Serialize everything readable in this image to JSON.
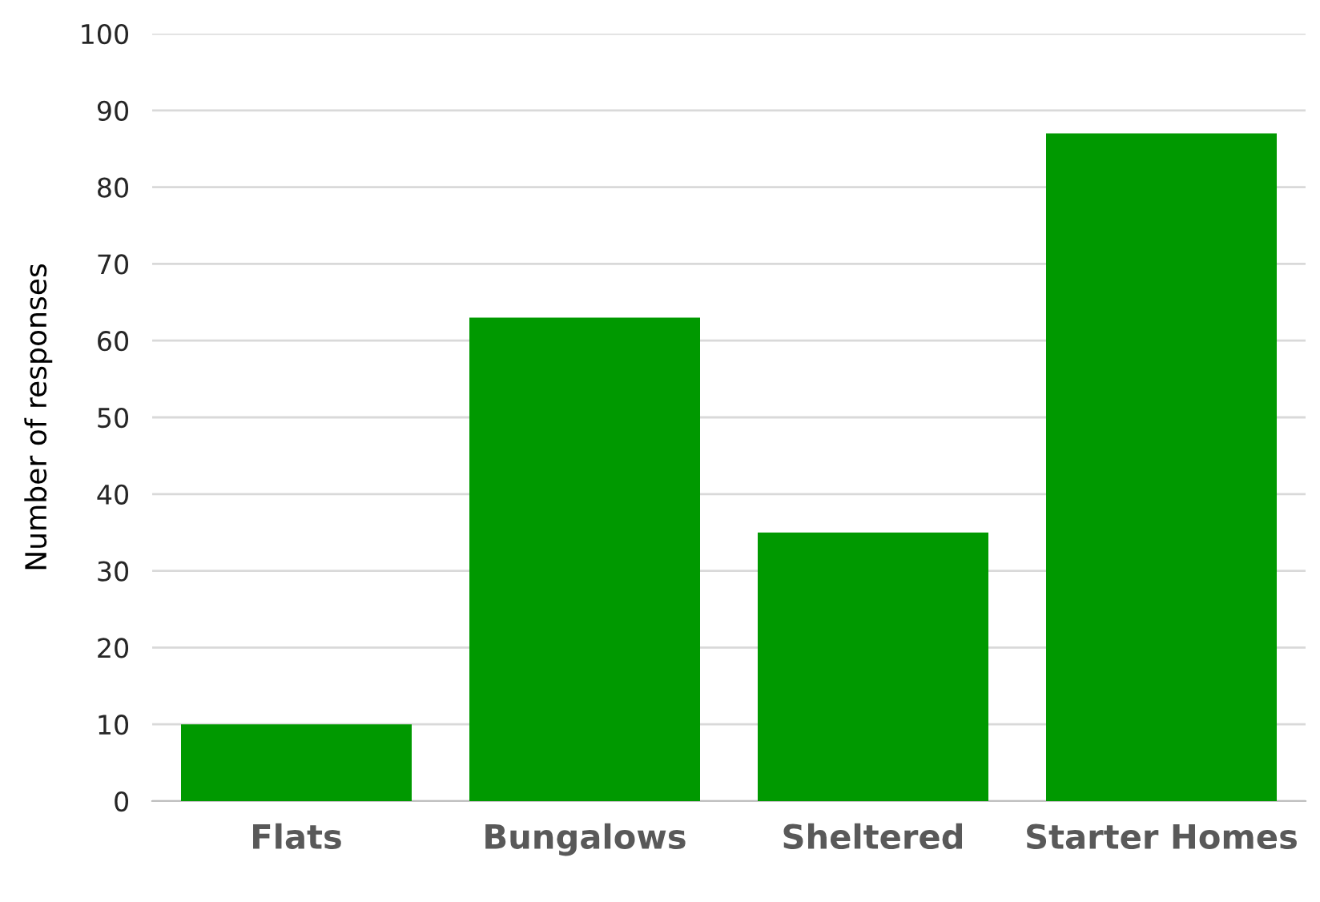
{
  "chart_data": {
    "type": "bar",
    "ylabel": "Number of responses",
    "categories": [
      "Flats",
      "Bungalows",
      "Sheltered",
      "Starter Homes"
    ],
    "values": [
      10,
      63,
      35,
      87
    ],
    "color": "#009900",
    "ylim": [
      0,
      100
    ],
    "yticks": [
      0,
      10,
      20,
      30,
      40,
      50,
      60,
      70,
      80,
      90,
      100
    ],
    "grid": "y",
    "legend": false
  }
}
